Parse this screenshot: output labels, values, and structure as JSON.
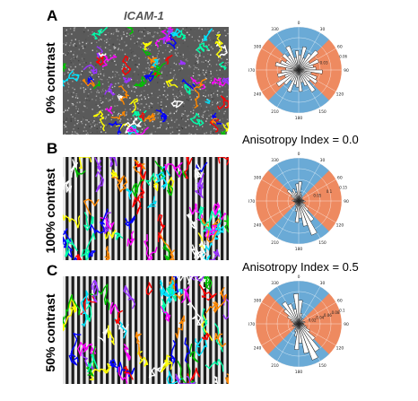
{
  "figure": {
    "column_title": "ICAM-1",
    "colors": {
      "blue_sector": "#6aaad6",
      "orange_sector": "#ee8a60",
      "noise_bg": "#5a5a5a",
      "track_palette": [
        "#ff00ff",
        "#00e5ff",
        "#ffff00",
        "#0000ff",
        "#00c000",
        "#ff0000",
        "#ff8800",
        "#9933ff",
        "#00ffaa",
        "#ffffff"
      ]
    },
    "panels": [
      {
        "letter": "A",
        "row_label": "0% contrast",
        "background": "noise",
        "anisotropy_label": "Anisotropy Index = 0.0",
        "polar": {
          "blue_ranges_deg": [
            [
              315,
              45
            ],
            [
              135,
              225
            ]
          ],
          "angle_labels": [
            "0",
            "30",
            "60",
            "90",
            "120",
            "150",
            "180",
            "210",
            "240",
            "270",
            "300",
            "330"
          ],
          "radial_labels": [
            "0.03",
            "0.06"
          ],
          "petals": [
            0.35,
            0.55,
            0.3,
            0.45,
            0.6,
            0.3,
            0.5,
            0.35,
            0.4,
            0.55,
            0.3,
            0.45,
            0.5,
            0.35,
            0.6,
            0.4,
            0.3,
            0.5,
            0.4,
            0.35,
            0.55,
            0.3,
            0.45,
            0.6,
            0.35,
            0.5,
            0.4,
            0.3,
            0.55,
            0.45,
            0.35,
            0.5,
            0.4,
            0.6,
            0.3,
            0.45
          ]
        }
      },
      {
        "letter": "B",
        "row_label": "100% contrast",
        "background": "stripes",
        "anisotropy_label": "Anisotropy Index = 0.5",
        "polar": {
          "blue_ranges_deg": [
            [
              315,
              45
            ],
            [
              135,
              225
            ]
          ],
          "angle_labels": [
            "0",
            "30",
            "60",
            "90",
            "120",
            "150",
            "180",
            "210",
            "240",
            "270",
            "300",
            "330"
          ],
          "radial_labels": [
            "0.05",
            "0.1",
            "0.15"
          ],
          "petals": [
            0.45,
            0.2,
            0.15,
            0.1,
            0.12,
            0.1,
            0.08,
            0.1,
            0.12,
            0.15,
            0.1,
            0.12,
            0.18,
            0.3,
            0.55,
            0.85,
            0.6,
            0.4,
            0.5,
            0.25,
            0.15,
            0.1,
            0.12,
            0.1,
            0.08,
            0.1,
            0.12,
            0.15,
            0.1,
            0.12,
            0.2,
            0.35,
            0.25,
            0.3,
            0.2,
            0.4
          ]
        }
      },
      {
        "letter": "C",
        "row_label": "50% contrast",
        "background": "stripes",
        "anisotropy_label": "",
        "polar": {
          "blue_ranges_deg": [
            [
              315,
              45
            ],
            [
              135,
              225
            ]
          ],
          "angle_labels": [
            "0",
            "30",
            "60",
            "90",
            "120",
            "150",
            "180",
            "210",
            "240",
            "270",
            "300",
            "330"
          ],
          "radial_labels": [
            "0.02",
            "0.04",
            "0.06",
            "0.08",
            "0.1"
          ],
          "petals": [
            0.55,
            0.25,
            0.15,
            0.12,
            0.15,
            0.1,
            0.12,
            0.15,
            0.1,
            0.12,
            0.15,
            0.2,
            0.3,
            0.5,
            0.75,
            0.9,
            0.7,
            0.45,
            0.6,
            0.3,
            0.2,
            0.12,
            0.15,
            0.1,
            0.12,
            0.15,
            0.1,
            0.12,
            0.15,
            0.2,
            0.3,
            0.45,
            0.6,
            0.5,
            0.35,
            0.7
          ]
        }
      }
    ]
  }
}
